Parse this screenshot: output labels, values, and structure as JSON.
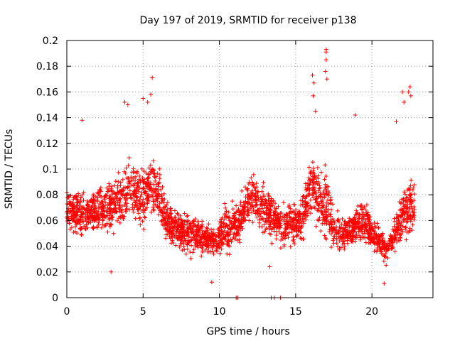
{
  "chart_data": {
    "type": "scatter",
    "title": "Day 197 of 2019, SRMTID for receiver p138",
    "xlabel": "GPS time / hours",
    "ylabel": "SRMTID / TECUs",
    "xlim": [
      0,
      24
    ],
    "ylim": [
      0,
      0.2
    ],
    "xticks": [
      0,
      5,
      10,
      15,
      20
    ],
    "xtick_labels": [
      "0",
      "5",
      "10",
      "15",
      "20"
    ],
    "yticks": [
      0,
      0.02,
      0.04,
      0.06,
      0.08,
      0.1,
      0.12,
      0.14,
      0.16,
      0.18,
      0.2
    ],
    "ytick_labels": [
      "0",
      "0.02",
      "0.04",
      "0.06",
      "0.08",
      "0.1",
      "0.12",
      "0.14",
      "0.16",
      "0.18",
      "0.2"
    ],
    "grid": true,
    "marker": "+",
    "color": "#ff0000",
    "series": [
      {
        "name": "SRMTID",
        "envelope_x": [
          0,
          0.5,
          1,
          1.5,
          2,
          2.5,
          3,
          3.5,
          4,
          4.5,
          5,
          5.5,
          6,
          6.5,
          7,
          7.5,
          8,
          8.5,
          9,
          9.5,
          10,
          10.5,
          11,
          11.5,
          12,
          12.5,
          13,
          13.5,
          14,
          14.5,
          15,
          15.5,
          16,
          16.5,
          17,
          17.5,
          18,
          18.5,
          19,
          19.5,
          20,
          20.5,
          21,
          21.5,
          22,
          22.5,
          22.8
        ],
        "envelope_center": [
          0.07,
          0.066,
          0.064,
          0.065,
          0.068,
          0.07,
          0.072,
          0.076,
          0.086,
          0.082,
          0.079,
          0.088,
          0.082,
          0.06,
          0.055,
          0.052,
          0.05,
          0.05,
          0.046,
          0.044,
          0.048,
          0.055,
          0.058,
          0.062,
          0.08,
          0.075,
          0.068,
          0.062,
          0.056,
          0.055,
          0.058,
          0.066,
          0.09,
          0.075,
          0.072,
          0.055,
          0.048,
          0.05,
          0.058,
          0.06,
          0.05,
          0.045,
          0.035,
          0.05,
          0.062,
          0.074,
          0.068
        ],
        "envelope_spread": [
          0.022,
          0.022,
          0.028,
          0.022,
          0.028,
          0.028,
          0.028,
          0.034,
          0.035,
          0.032,
          0.035,
          0.036,
          0.032,
          0.024,
          0.024,
          0.024,
          0.022,
          0.024,
          0.018,
          0.018,
          0.022,
          0.026,
          0.028,
          0.026,
          0.03,
          0.03,
          0.028,
          0.026,
          0.024,
          0.024,
          0.025,
          0.03,
          0.032,
          0.03,
          0.04,
          0.026,
          0.02,
          0.02,
          0.022,
          0.026,
          0.018,
          0.018,
          0.015,
          0.022,
          0.028,
          0.038,
          0.03
        ],
        "outliers": [
          {
            "x": 17.0,
            "y": 0.193
          },
          {
            "x": 17.0,
            "y": 0.191
          },
          {
            "x": 17.0,
            "y": 0.185
          },
          {
            "x": 16.95,
            "y": 0.176
          },
          {
            "x": 17.05,
            "y": 0.17
          },
          {
            "x": 16.1,
            "y": 0.173
          },
          {
            "x": 16.2,
            "y": 0.167
          },
          {
            "x": 16.15,
            "y": 0.157
          },
          {
            "x": 16.3,
            "y": 0.145
          },
          {
            "x": 5.6,
            "y": 0.171
          },
          {
            "x": 5.5,
            "y": 0.158
          },
          {
            "x": 5.0,
            "y": 0.155
          },
          {
            "x": 5.3,
            "y": 0.152
          },
          {
            "x": 3.8,
            "y": 0.152
          },
          {
            "x": 4.0,
            "y": 0.15
          },
          {
            "x": 22.5,
            "y": 0.164
          },
          {
            "x": 22.4,
            "y": 0.16
          },
          {
            "x": 22.0,
            "y": 0.16
          },
          {
            "x": 22.55,
            "y": 0.157
          },
          {
            "x": 22.1,
            "y": 0.152
          },
          {
            "x": 18.9,
            "y": 0.142
          },
          {
            "x": 21.6,
            "y": 0.137
          },
          {
            "x": 1.0,
            "y": 0.138
          },
          {
            "x": 2.9,
            "y": 0.02
          },
          {
            "x": 11.1,
            "y": 0.0
          },
          {
            "x": 11.2,
            "y": 0.0
          },
          {
            "x": 13.4,
            "y": 0.0
          },
          {
            "x": 13.6,
            "y": 0.0
          },
          {
            "x": 14.0,
            "y": 0.0
          },
          {
            "x": 20.8,
            "y": 0.011
          },
          {
            "x": 9.5,
            "y": 0.012
          },
          {
            "x": 13.3,
            "y": 0.024
          }
        ],
        "approx_point_count": 2700
      }
    ]
  }
}
